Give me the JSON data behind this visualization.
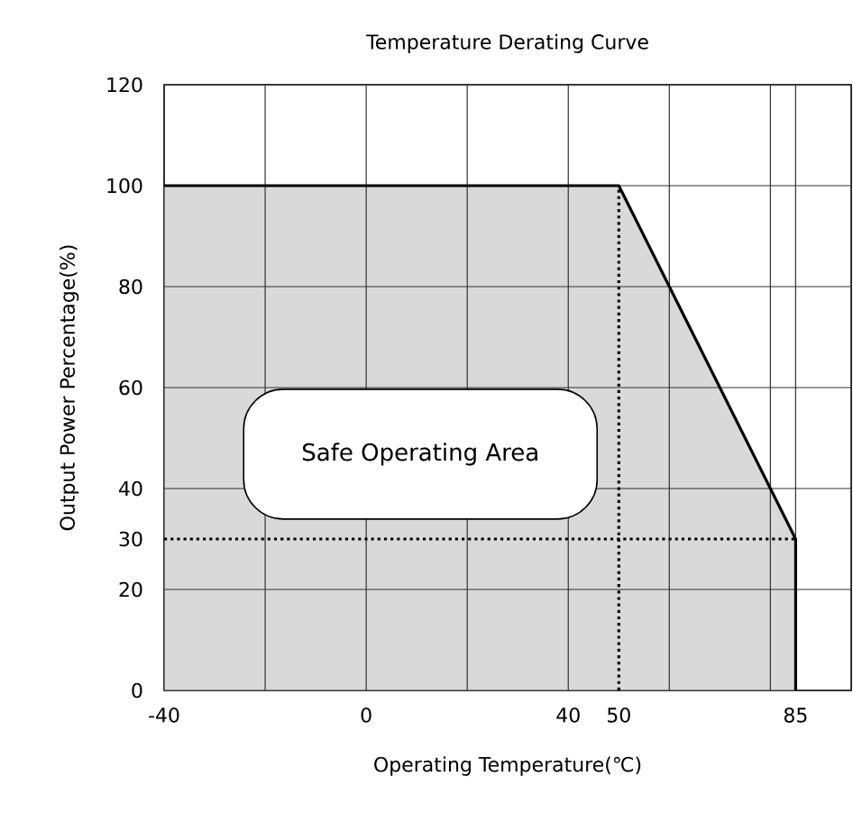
{
  "chart_data": {
    "type": "area",
    "title": "Temperature Derating Curve",
    "xlabel": "Operating Temperature(℃)",
    "ylabel": "Output Power Percentage(%)",
    "xlim": [
      -40,
      96
    ],
    "ylim": [
      0,
      120
    ],
    "xticks": [
      -40,
      {
        "value": -20,
        "label": null
      },
      0,
      {
        "value": 20,
        "label": null
      },
      40,
      50,
      {
        "value": 60,
        "label": null
      },
      {
        "value": 80,
        "label": null
      },
      85
    ],
    "yticks": [
      0,
      20,
      30,
      40,
      60,
      80,
      100,
      120
    ],
    "grid": true,
    "series": [
      {
        "color": "#d9d9d9",
        "x": [
          -40,
          50,
          85,
          85
        ],
        "values": [
          100,
          100,
          30,
          0
        ]
      },
      {
        "type": "line",
        "line_style": "dotted",
        "color": "#000000",
        "x": [
          50,
          50
        ],
        "values": [
          0,
          100
        ]
      },
      {
        "type": "line",
        "line_style": "dotted",
        "color": "#000000",
        "x": [
          -40,
          85
        ],
        "values": [
          30,
          30
        ]
      }
    ],
    "annotations": [
      "Safe Operating Area"
    ]
  }
}
